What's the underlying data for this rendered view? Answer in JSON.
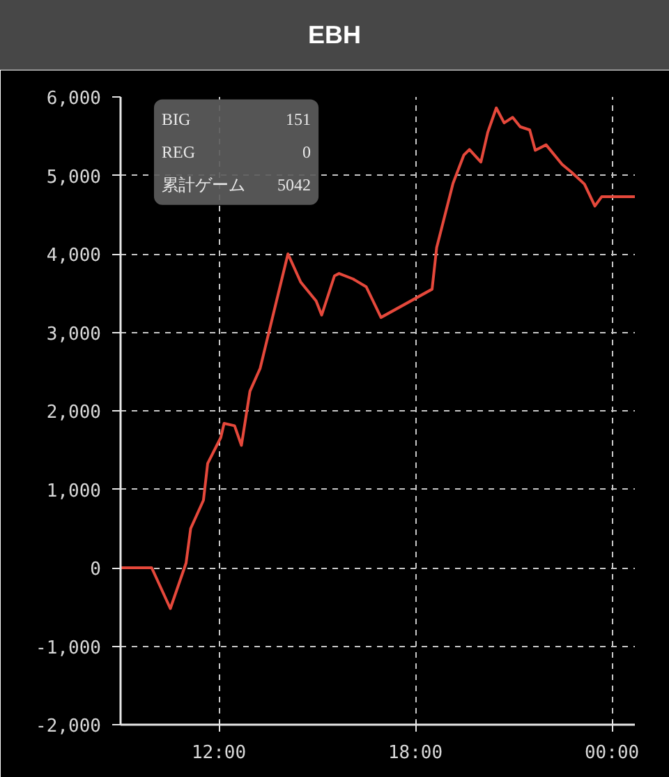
{
  "chart_data": {
    "type": "line",
    "title": "EBH",
    "x": [
      9.0,
      9.95,
      10.52,
      11.0,
      11.14,
      11.53,
      11.66,
      12.06,
      12.16,
      12.48,
      12.69,
      12.95,
      13.26,
      14.11,
      14.5,
      14.97,
      15.14,
      15.53,
      15.67,
      16.1,
      16.5,
      16.95,
      18.51,
      18.65,
      19.15,
      19.48,
      19.65,
      20.0,
      20.21,
      20.47,
      20.71,
      20.97,
      21.2,
      21.49,
      21.66,
      21.99,
      22.48,
      22.77,
      23.16,
      23.48,
      23.69,
      24.7
    ],
    "series": [
      {
        "color": "#e5483b",
        "values": [
          0,
          0,
          -520,
          60,
          500,
          860,
          1330,
          1660,
          1840,
          1810,
          1560,
          2250,
          2540,
          4000,
          3640,
          3400,
          3220,
          3720,
          3750,
          3680,
          3580,
          3190,
          3550,
          4080,
          4900,
          5260,
          5330,
          5170,
          5550,
          5860,
          5670,
          5740,
          5620,
          5580,
          5320,
          5390,
          5140,
          5040,
          4890,
          4610,
          4730,
          4730
        ]
      }
    ],
    "xlim": [
      9.0,
      24.7
    ],
    "xticks": [
      {
        "value": 12,
        "label": "12:00"
      },
      {
        "value": 18,
        "label": "18:00"
      },
      {
        "value": 24,
        "label": "00:00"
      }
    ],
    "ylim": [
      -2000,
      6000
    ],
    "yticks": [
      {
        "value": -2000,
        "label": "-2,000"
      },
      {
        "value": -1000,
        "label": "-1,000"
      },
      0,
      {
        "value": 1000,
        "label": "1,000"
      },
      {
        "value": 2000,
        "label": "2,000"
      },
      {
        "value": 3000,
        "label": "3,000"
      },
      {
        "value": 4000,
        "label": "4,000"
      },
      {
        "value": 5000,
        "label": "5,000"
      },
      {
        "value": 6000,
        "label": "6,000"
      }
    ],
    "grid": true,
    "annotations": [
      "BIG",
      "151",
      "REG",
      "0",
      "累計ゲーム",
      "5042"
    ]
  }
}
